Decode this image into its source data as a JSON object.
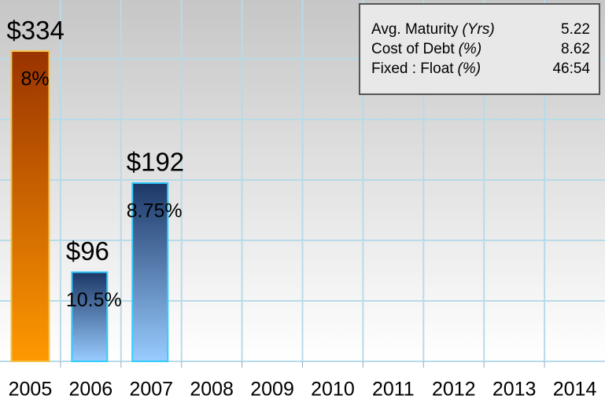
{
  "chart_data": {
    "type": "bar",
    "categories": [
      "2005",
      "2006",
      "2007",
      "2008",
      "2009",
      "2010",
      "2011",
      "2012",
      "2013",
      "2014"
    ],
    "values": [
      334,
      96,
      192,
      null,
      null,
      null,
      null,
      null,
      null,
      null
    ],
    "value_labels": [
      "$334",
      "$96",
      "$192",
      null,
      null,
      null,
      null,
      null,
      null,
      null
    ],
    "rate_labels": [
      "8%",
      "10.5%",
      "8.75%",
      null,
      null,
      null,
      null,
      null,
      null,
      null
    ],
    "bar_gradients": [
      [
        "#993300",
        "#ff9900"
      ],
      [
        "#1c3766",
        "#99ccff"
      ],
      [
        "#1c3766",
        "#99ccff"
      ],
      null,
      null,
      null,
      null,
      null,
      null,
      null
    ],
    "bar_borders": [
      "#f2c24a",
      "#33ccff",
      "#33ccff",
      null,
      null,
      null,
      null,
      null,
      null,
      null
    ],
    "ylim": [
      0,
      389
    ],
    "grid": true,
    "info": [
      {
        "label": "Avg. Maturity",
        "unit": "(Yrs)",
        "value": 5.22
      },
      {
        "label": "Cost of Debt",
        "unit": "(%)",
        "value": 8.62
      },
      {
        "label": "Fixed : Float",
        "unit": "(%)",
        "value": "46:54"
      }
    ]
  }
}
